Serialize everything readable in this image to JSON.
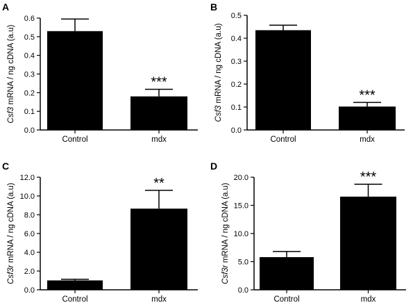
{
  "chart_data": [
    {
      "panel": "A",
      "type": "bar",
      "categories": [
        "Control",
        "mdx"
      ],
      "values": [
        0.53,
        0.18
      ],
      "errors": [
        0.065,
        0.038
      ],
      "ylabel_gene": "Csf3",
      "ylabel_rest": " mRNA / ng cDNA (a.u)",
      "ylim": [
        0,
        0.6
      ],
      "yticks": [
        0,
        0.1,
        0.2,
        0.3,
        0.4,
        0.5,
        0.6
      ],
      "ytick_labels": [
        "0.0",
        "0.1",
        "0.2",
        "0.3",
        "0.4",
        "0.5",
        "0.6"
      ],
      "annotations": [
        "",
        "***"
      ],
      "color": "#000000"
    },
    {
      "panel": "B",
      "type": "bar",
      "categories": [
        "Control",
        "mdx"
      ],
      "values": [
        0.435,
        0.102
      ],
      "errors": [
        0.022,
        0.018
      ],
      "ylabel_gene": "Csf3",
      "ylabel_rest": " mRNA / ng cDNA (a.u)",
      "ylim": [
        0,
        0.5
      ],
      "yticks": [
        0,
        0.1,
        0.2,
        0.3,
        0.4,
        0.5
      ],
      "ytick_labels": [
        "0.0",
        "0.1",
        "0.2",
        "0.3",
        "0.4",
        "0.5"
      ],
      "annotations": [
        "",
        "***"
      ],
      "color": "#000000"
    },
    {
      "panel": "C",
      "type": "bar",
      "categories": [
        "Control",
        "mdx"
      ],
      "values": [
        1.0,
        8.65
      ],
      "errors": [
        0.12,
        1.95
      ],
      "ylabel_gene": "Csf3r",
      "ylabel_rest": " mRNA / ng cDNA (a.u)",
      "ylim": [
        0,
        12
      ],
      "yticks": [
        0,
        2,
        4,
        6,
        8,
        10,
        12
      ],
      "ytick_labels": [
        "0.0",
        "2.0",
        "4.0",
        "6.0",
        "8.0",
        "10.0",
        "12.0"
      ],
      "annotations": [
        "",
        "**"
      ],
      "color": "#000000"
    },
    {
      "panel": "D",
      "type": "bar",
      "categories": [
        "Control",
        "mdx"
      ],
      "values": [
        5.8,
        16.55
      ],
      "errors": [
        1.0,
        2.2
      ],
      "ylabel_gene": "Csf3r",
      "ylabel_rest": " mRNA / ng cDNA (a.u)",
      "ylim": [
        0,
        20
      ],
      "yticks": [
        0,
        5,
        10,
        15,
        20
      ],
      "ytick_labels": [
        "0.0",
        "5.0",
        "10.0",
        "15.0",
        "20.0"
      ],
      "annotations": [
        "",
        "***"
      ],
      "color": "#000000"
    }
  ]
}
